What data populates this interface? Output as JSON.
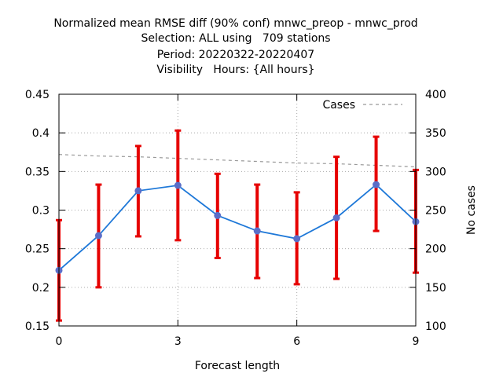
{
  "chart_data": {
    "type": "line",
    "title_lines": [
      "Normalized mean RMSE diff (90% conf) mnwc_preop - mnwc_prod",
      "Selection: ALL using   709 stations",
      "Period: 20220322-20220407",
      "Visibility   Hours: {All hours}"
    ],
    "xlabel": "Forecast length",
    "y2label": "No cases",
    "x": [
      0,
      1,
      2,
      3,
      4,
      5,
      6,
      7,
      8,
      9
    ],
    "xlim": [
      0,
      9
    ],
    "xticks": [
      "0",
      "3",
      "6",
      "9"
    ],
    "ylim": [
      0.15,
      0.45
    ],
    "yticks": [
      "0.15",
      "0.2",
      "0.25",
      "0.3",
      "0.35",
      "0.4",
      "0.45"
    ],
    "y2lim": [
      100,
      400
    ],
    "y2ticks": [
      "100",
      "150",
      "200",
      "250",
      "300",
      "350",
      "400"
    ],
    "grid": true,
    "legend_position": "top-right",
    "series": [
      {
        "values": [
          0.222,
          0.267,
          0.325,
          0.332,
          0.293,
          0.273,
          0.263,
          0.29,
          0.333,
          0.285
        ],
        "err_low": [
          0.157,
          0.2,
          0.266,
          0.261,
          0.238,
          0.212,
          0.204,
          0.211,
          0.273,
          0.219
        ],
        "err_high": [
          0.287,
          0.333,
          0.383,
          0.403,
          0.347,
          0.333,
          0.323,
          0.369,
          0.395,
          0.352
        ],
        "color": "#1e78d8",
        "marker_color": "#5a6ec8",
        "error_color": "#e60000"
      },
      {
        "name": "Cases",
        "axis": "y2",
        "values": [
          322,
          320,
          319,
          317,
          315,
          313,
          311,
          310,
          308,
          306
        ],
        "color": "#999999",
        "dashed": true
      }
    ]
  }
}
